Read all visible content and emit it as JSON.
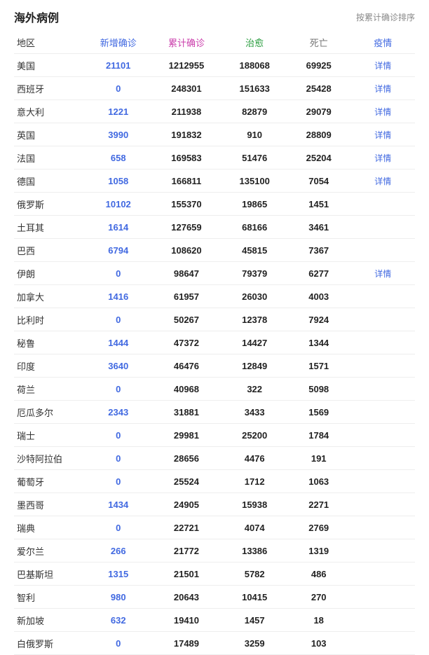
{
  "title": "海外病例",
  "sort_label": "按累计确诊排序",
  "detail_text": "详情",
  "colors": {
    "region": "#333333",
    "new_confirmed_header": "#4169e1",
    "total_confirmed_header": "#ca3dab",
    "cured_header": "#2a9d3f",
    "deaths_header": "#777777",
    "epidemic_header": "#4169e1",
    "new_confirmed_cell": "#4169e1",
    "detail_link": "#4169e1"
  },
  "columns": [
    "地区",
    "新增确诊",
    "累计确诊",
    "治愈",
    "死亡",
    "疫情"
  ],
  "rows": [
    {
      "region": "美国",
      "new": 21101,
      "total": 1212955,
      "cured": 188068,
      "deaths": 69925,
      "detail": true
    },
    {
      "region": "西班牙",
      "new": 0,
      "total": 248301,
      "cured": 151633,
      "deaths": 25428,
      "detail": true
    },
    {
      "region": "意大利",
      "new": 1221,
      "total": 211938,
      "cured": 82879,
      "deaths": 29079,
      "detail": true
    },
    {
      "region": "英国",
      "new": 3990,
      "total": 191832,
      "cured": 910,
      "deaths": 28809,
      "detail": true
    },
    {
      "region": "法国",
      "new": 658,
      "total": 169583,
      "cured": 51476,
      "deaths": 25204,
      "detail": true
    },
    {
      "region": "德国",
      "new": 1058,
      "total": 166811,
      "cured": 135100,
      "deaths": 7054,
      "detail": true
    },
    {
      "region": "俄罗斯",
      "new": 10102,
      "total": 155370,
      "cured": 19865,
      "deaths": 1451,
      "detail": false
    },
    {
      "region": "土耳其",
      "new": 1614,
      "total": 127659,
      "cured": 68166,
      "deaths": 3461,
      "detail": false
    },
    {
      "region": "巴西",
      "new": 6794,
      "total": 108620,
      "cured": 45815,
      "deaths": 7367,
      "detail": false
    },
    {
      "region": "伊朗",
      "new": 0,
      "total": 98647,
      "cured": 79379,
      "deaths": 6277,
      "detail": true
    },
    {
      "region": "加拿大",
      "new": 1416,
      "total": 61957,
      "cured": 26030,
      "deaths": 4003,
      "detail": false
    },
    {
      "region": "比利时",
      "new": 0,
      "total": 50267,
      "cured": 12378,
      "deaths": 7924,
      "detail": false
    },
    {
      "region": "秘鲁",
      "new": 1444,
      "total": 47372,
      "cured": 14427,
      "deaths": 1344,
      "detail": false
    },
    {
      "region": "印度",
      "new": 3640,
      "total": 46476,
      "cured": 12849,
      "deaths": 1571,
      "detail": false
    },
    {
      "region": "荷兰",
      "new": 0,
      "total": 40968,
      "cured": 322,
      "deaths": 5098,
      "detail": false
    },
    {
      "region": "厄瓜多尔",
      "new": 2343,
      "total": 31881,
      "cured": 3433,
      "deaths": 1569,
      "detail": false
    },
    {
      "region": "瑞士",
      "new": 0,
      "total": 29981,
      "cured": 25200,
      "deaths": 1784,
      "detail": false
    },
    {
      "region": "沙特阿拉伯",
      "new": 0,
      "total": 28656,
      "cured": 4476,
      "deaths": 191,
      "detail": false
    },
    {
      "region": "葡萄牙",
      "new": 0,
      "total": 25524,
      "cured": 1712,
      "deaths": 1063,
      "detail": false
    },
    {
      "region": "墨西哥",
      "new": 1434,
      "total": 24905,
      "cured": 15938,
      "deaths": 2271,
      "detail": false
    },
    {
      "region": "瑞典",
      "new": 0,
      "total": 22721,
      "cured": 4074,
      "deaths": 2769,
      "detail": false
    },
    {
      "region": "爱尔兰",
      "new": 266,
      "total": 21772,
      "cured": 13386,
      "deaths": 1319,
      "detail": false
    },
    {
      "region": "巴基斯坦",
      "new": 1315,
      "total": 21501,
      "cured": 5782,
      "deaths": 486,
      "detail": false
    },
    {
      "region": "智利",
      "new": 980,
      "total": 20643,
      "cured": 10415,
      "deaths": 270,
      "detail": false
    },
    {
      "region": "新加坡",
      "new": 632,
      "total": 19410,
      "cured": 1457,
      "deaths": 18,
      "detail": false
    },
    {
      "region": "白俄罗斯",
      "new": 0,
      "total": 17489,
      "cured": 3259,
      "deaths": 103,
      "detail": false
    }
  ]
}
